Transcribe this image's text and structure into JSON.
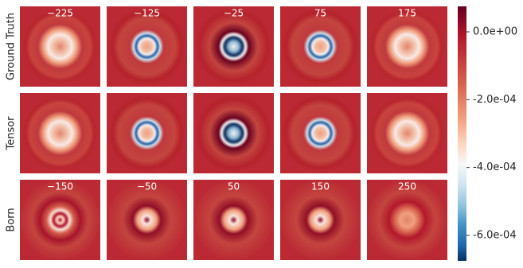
{
  "chart_data": {
    "type": "heatmap",
    "panels": [
      {
        "label": "Ground Truth",
        "titles": [
          "−225",
          "−125",
          "−25",
          "75",
          "175"
        ]
      },
      {
        "label": "Tensor"
      },
      {
        "label": "Born",
        "titles": [
          "−150",
          "−50",
          "50",
          "150",
          "250"
        ]
      }
    ],
    "colorbar": {
      "lim": [
        -0.000675,
        7.5e-05
      ],
      "ticks": [
        {
          "value": 0,
          "label": "0.0e+00"
        },
        {
          "value": -0.0002,
          "label": "-2.0e-04"
        },
        {
          "value": -0.0004,
          "label": "-4.0e-04"
        },
        {
          "value": -0.0006,
          "label": "-6.0e-04"
        }
      ]
    }
  }
}
